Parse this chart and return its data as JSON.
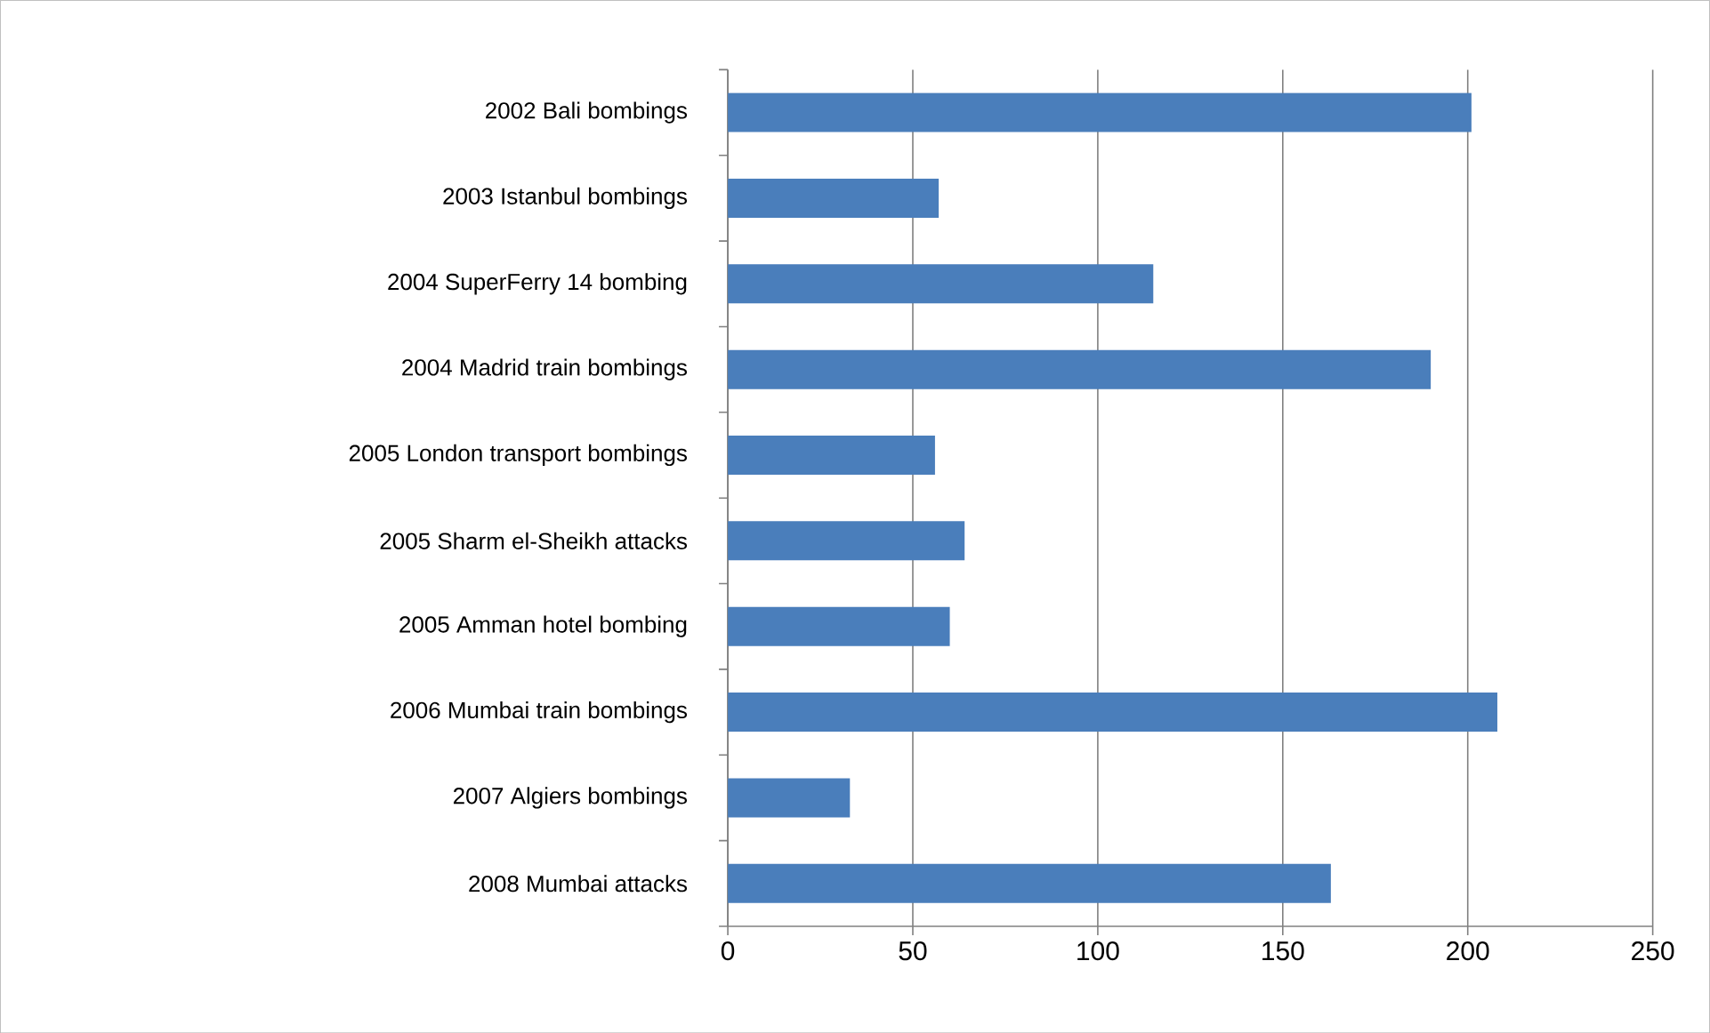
{
  "chart_data": {
    "type": "bar",
    "orientation": "horizontal",
    "categories": [
      "2002 Bali bombings",
      "2003 Istanbul bombings",
      "2004 SuperFerry 14 bombing",
      "2004 Madrid train bombings",
      "2005 London transport bombings",
      "2005 Sharm el-Sheikh attacks",
      "2005 Amman hotel bombing",
      "2006 Mumbai train bombings",
      "2007 Algiers bombings",
      "2008 Mumbai attacks"
    ],
    "values": [
      201,
      57,
      115,
      190,
      56,
      64,
      60,
      208,
      33,
      163
    ],
    "color": "#4a7ebb",
    "xlim": [
      0,
      250
    ],
    "xticks": [
      0,
      50,
      100,
      150,
      200,
      250
    ],
    "grid": "x"
  }
}
